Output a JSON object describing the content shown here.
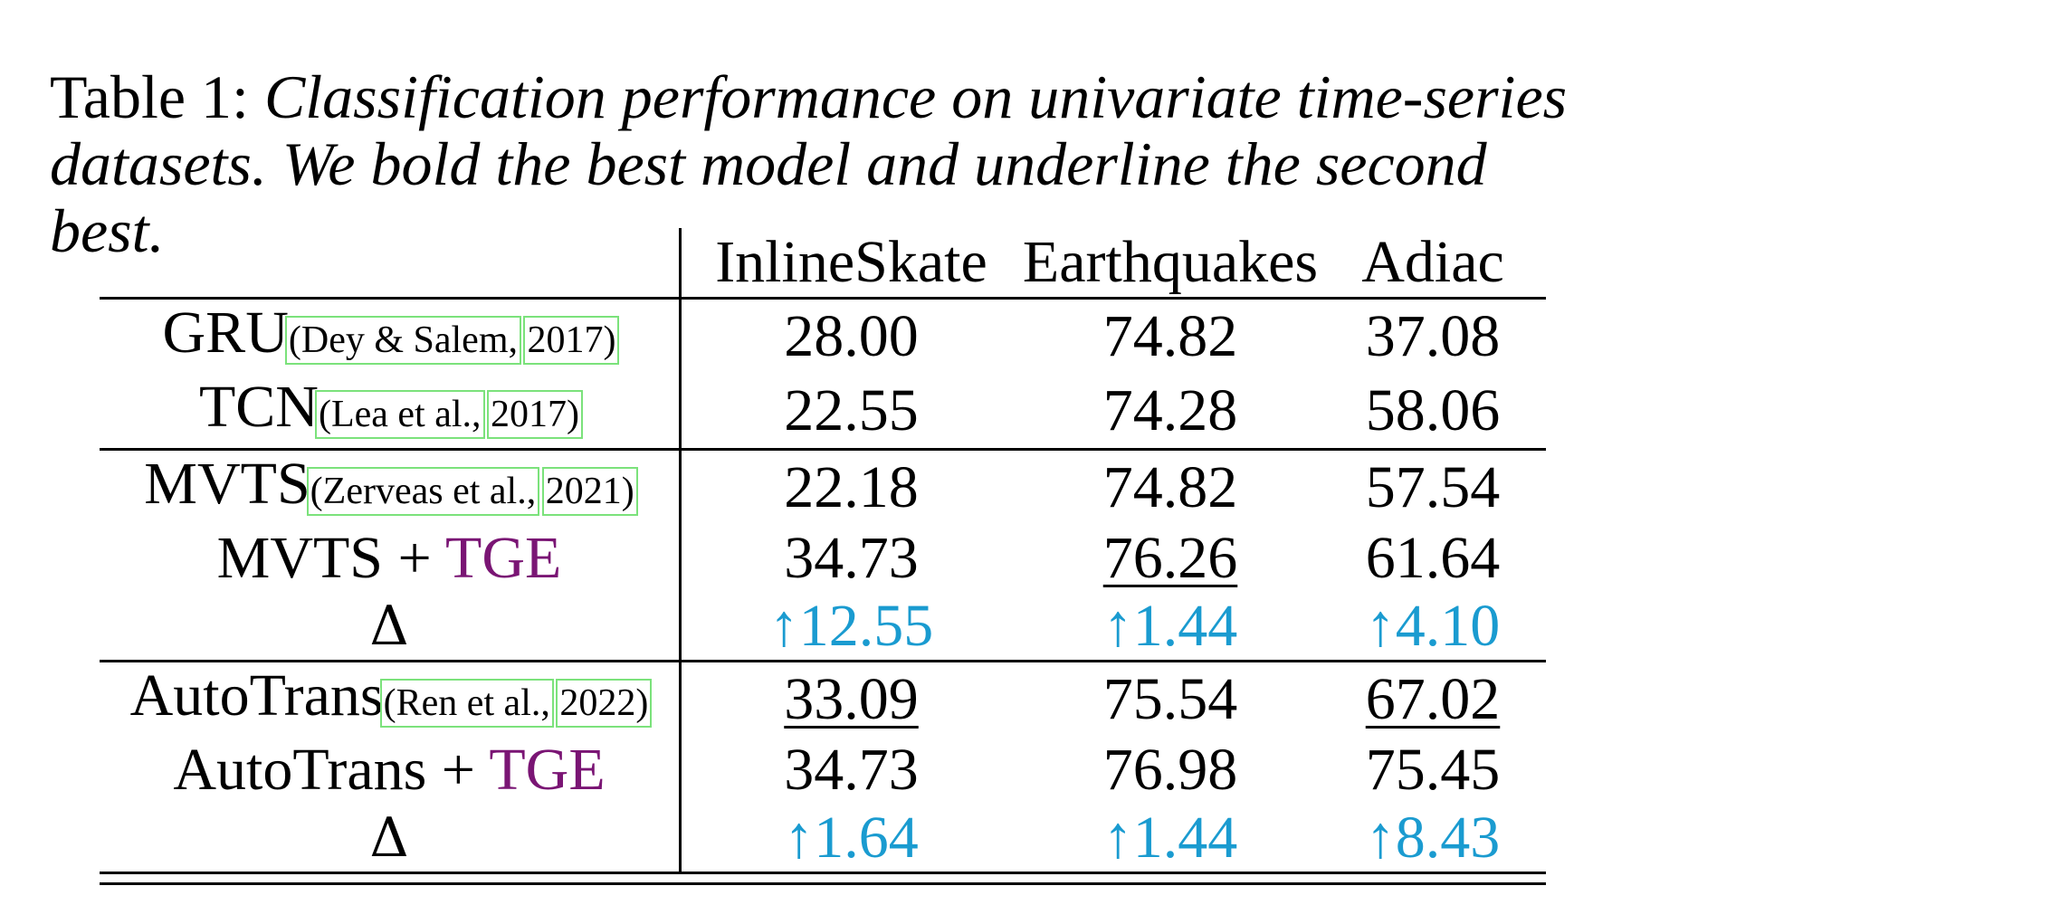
{
  "caption": {
    "label": "Table 1:",
    "text": "Classification performance on univariate time-series datasets. We bold the best model and underline the second best."
  },
  "columns": [
    "InlineSkate",
    "Earthquakes",
    "Adiac"
  ],
  "rows": [
    {
      "model": "GRU",
      "cite_a": "(Dey & Salem,",
      "cite_b": "2017)",
      "values": [
        "28.00",
        "74.82",
        "37.08"
      ]
    },
    {
      "model": "TCN",
      "cite_a": "(Lea et al.,",
      "cite_b": "2017)",
      "values": [
        "22.55",
        "74.28",
        "58.06"
      ]
    },
    {
      "model": "MVTS",
      "cite_a": "(Zerveas et al.,",
      "cite_b": "2021)",
      "values": [
        "22.18",
        "74.82",
        "57.54"
      ]
    },
    {
      "model": "MVTS + ",
      "tge": "TGE",
      "values": [
        "34.73",
        "76.26",
        "61.64"
      ]
    },
    {
      "model": "Δ",
      "values": [
        "↑12.55",
        "↑1.44",
        "↑4.10"
      ]
    },
    {
      "model": "AutoTrans",
      "cite_a": "(Ren et al.,",
      "cite_b": "2022)",
      "values": [
        "33.09",
        "75.54",
        "67.02"
      ]
    },
    {
      "model": "AutoTrans + ",
      "tge": "TGE",
      "values": [
        "34.73",
        "76.98",
        "75.45"
      ]
    },
    {
      "model": "Δ",
      "values": [
        "↑1.64",
        "↑1.44",
        "↑8.43"
      ]
    }
  ],
  "colors": {
    "tge": "#7a1574",
    "delta": "#1a9bd0",
    "citation_box": "#7be27b"
  }
}
